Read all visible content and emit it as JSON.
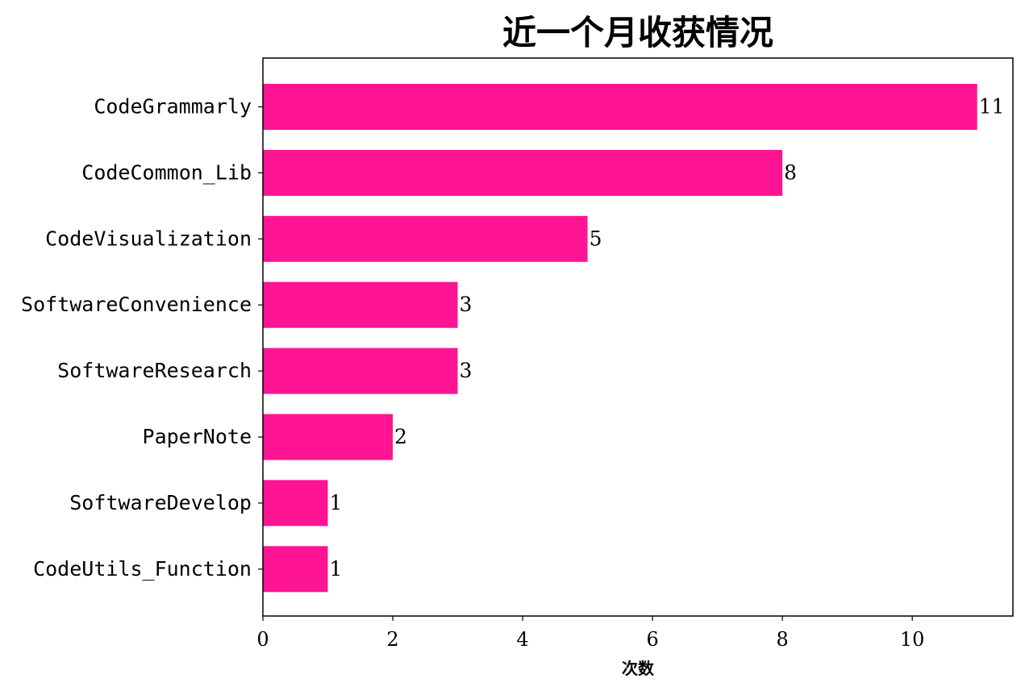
{
  "chart_data": {
    "type": "bar",
    "orientation": "horizontal",
    "title": "近一个月收获情况",
    "xlabel": "次数",
    "ylabel": "",
    "xlim": [
      0,
      11.55
    ],
    "xticks": [
      0,
      2,
      4,
      6,
      8,
      10
    ],
    "grid": false,
    "legend": "none",
    "bar_color": "#FF1493",
    "categories": [
      "CodeGrammarly",
      "CodeCommon_Lib",
      "CodeVisualization",
      "SoftwareConvenience",
      "SoftwareResearch",
      "PaperNote",
      "SoftwareDevelop",
      "CodeUtils_Function"
    ],
    "values": [
      11,
      8,
      5,
      3,
      3,
      2,
      1,
      1
    ]
  }
}
